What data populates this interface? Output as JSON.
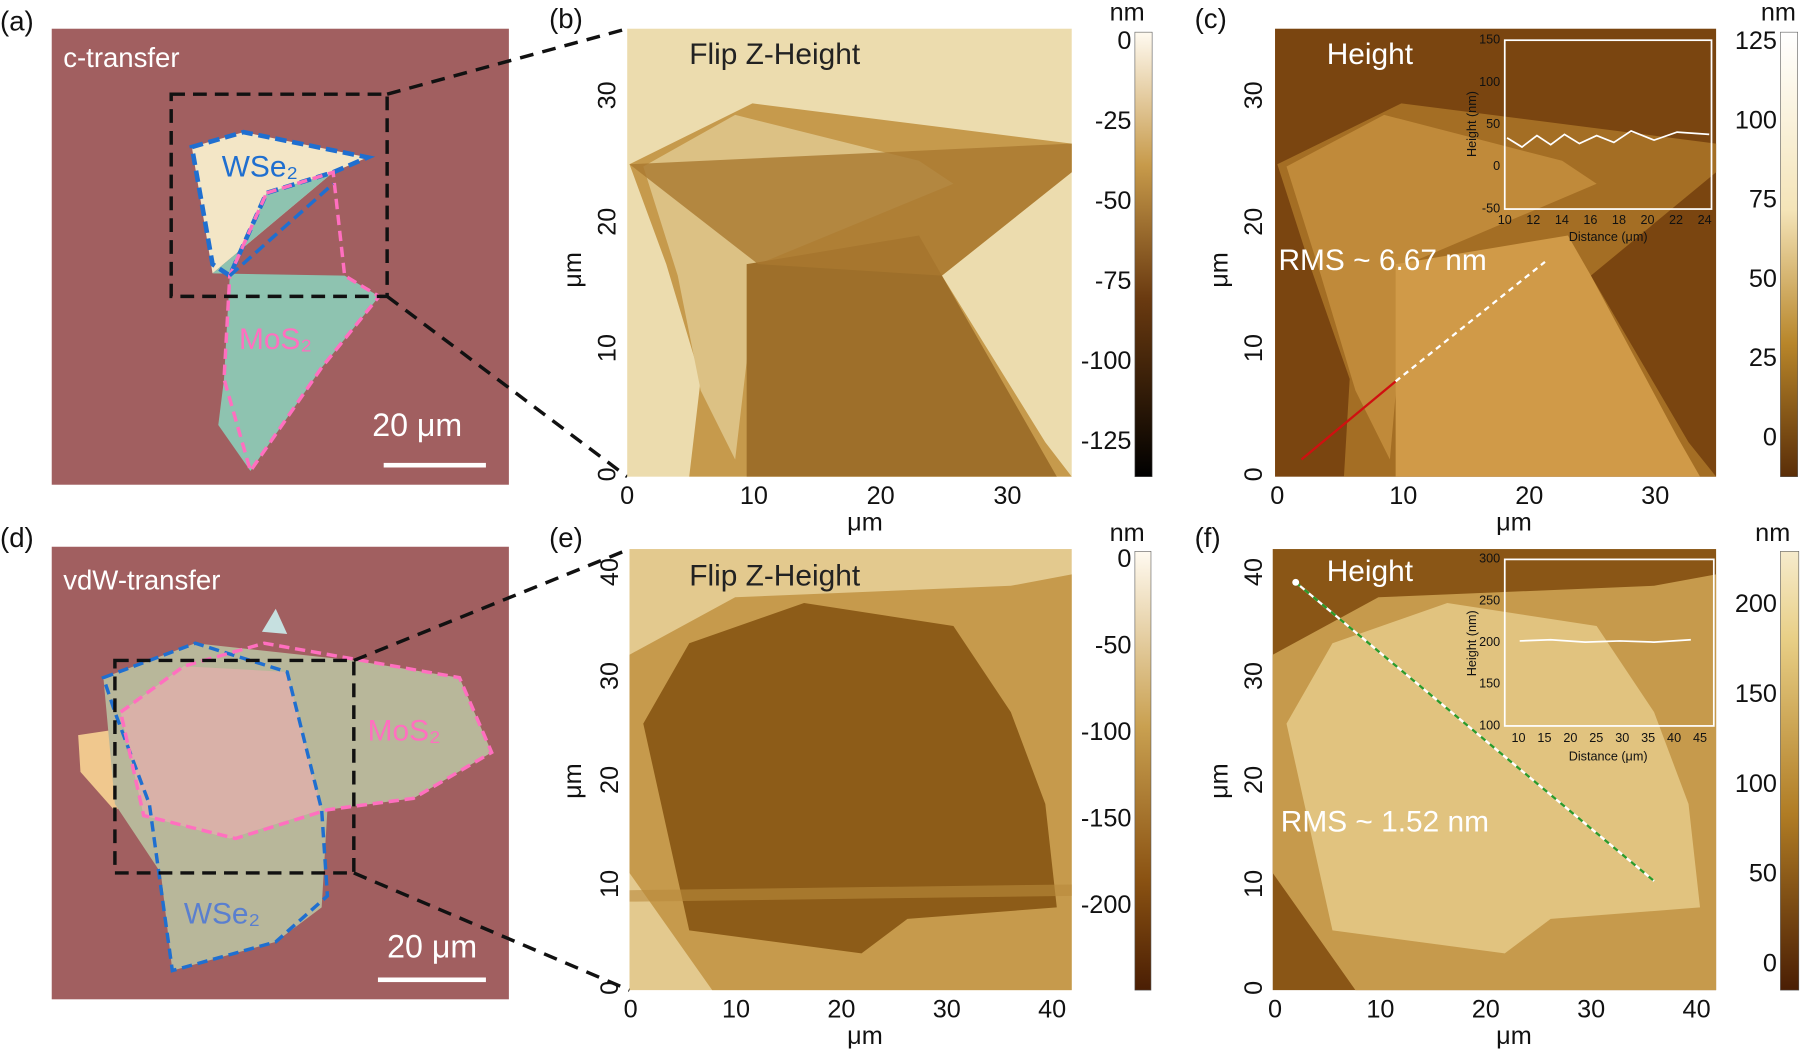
{
  "panels": [
    {
      "label": "(a)",
      "title": "c-transfer",
      "flakes": [
        "WSe₂",
        "MoS₂"
      ],
      "scale_bar": "20 μm"
    },
    {
      "label": "(b)",
      "title": "Flip Z-Height",
      "x_ticks": [
        "0",
        "10",
        "20",
        "30"
      ],
      "y_ticks": [
        "0",
        "10",
        "20",
        "30"
      ],
      "x_label": "μm",
      "y_label": "μm",
      "colorbar_unit": "nm",
      "colorbar_ticks": [
        "0",
        "-25",
        "-50",
        "-75",
        "-100",
        "-125"
      ]
    },
    {
      "label": "(c)",
      "title": "Height",
      "rms": "RMS ~ 6.67 nm",
      "x_ticks": [
        "0",
        "10",
        "20",
        "30"
      ],
      "y_ticks": [
        "0",
        "10",
        "20",
        "30"
      ],
      "x_label": "μm",
      "y_label": "μm",
      "colorbar_unit": "nm",
      "colorbar_ticks": [
        "125",
        "100",
        "75",
        "50",
        "25",
        "0"
      ],
      "inset": {
        "x_ticks": [
          "10",
          "12",
          "14",
          "16",
          "18",
          "20",
          "22",
          "24"
        ],
        "y_ticks": [
          "150",
          "100",
          "50",
          "0",
          "-50"
        ],
        "x_label": "Distance (μm)",
        "y_label": "Height (nm)"
      }
    },
    {
      "label": "(d)",
      "title": "vdW-transfer",
      "flakes": [
        "MoS₂",
        "WSe₂"
      ],
      "scale_bar": "20 μm"
    },
    {
      "label": "(e)",
      "title": "Flip Z-Height",
      "x_ticks": [
        "0",
        "10",
        "20",
        "30",
        "40"
      ],
      "y_ticks": [
        "0",
        "10",
        "20",
        "30",
        "40"
      ],
      "x_label": "μm",
      "y_label": "μm",
      "colorbar_unit": "nm",
      "colorbar_ticks": [
        "0",
        "-50",
        "-100",
        "-150",
        "-200"
      ]
    },
    {
      "label": "(f)",
      "title": "Height",
      "rms": "RMS ~ 1.52 nm",
      "x_ticks": [
        "0",
        "10",
        "20",
        "30",
        "40"
      ],
      "y_ticks": [
        "0",
        "10",
        "20",
        "30",
        "40"
      ],
      "x_label": "μm",
      "y_label": "μm",
      "colorbar_unit": "nm",
      "colorbar_ticks": [
        "200",
        "150",
        "100",
        "50",
        "0"
      ],
      "inset": {
        "x_ticks": [
          "10",
          "15",
          "20",
          "25",
          "30",
          "35",
          "40",
          "45"
        ],
        "y_ticks": [
          "300",
          "250",
          "200",
          "150",
          "100"
        ],
        "x_label": "Distance (μm)",
        "y_label": "Height (nm)"
      }
    }
  ]
}
